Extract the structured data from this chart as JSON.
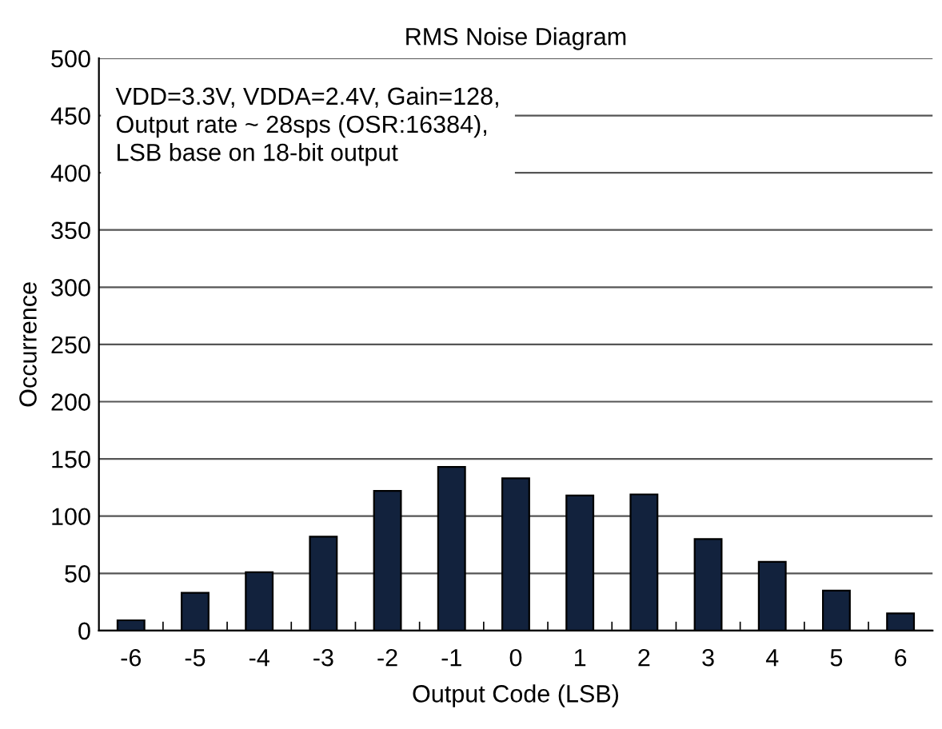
{
  "chart_data": {
    "type": "bar",
    "title": "RMS Noise Diagram",
    "xlabel": "Output Code (LSB)",
    "ylabel": "Occurrence",
    "categories": [
      "-6",
      "-5",
      "-4",
      "-3",
      "-2",
      "-1",
      "0",
      "1",
      "2",
      "3",
      "4",
      "5",
      "6"
    ],
    "values": [
      9,
      33,
      51,
      82,
      122,
      143,
      133,
      118,
      119,
      80,
      60,
      35,
      15
    ],
    "color": "#12223d",
    "ylim": [
      0,
      500
    ],
    "yticks": [
      0,
      50,
      100,
      150,
      200,
      250,
      300,
      350,
      400,
      450,
      500
    ],
    "grid": "y",
    "annotations": [
      "VDD=3.3V, VDDA=2.4V, Gain=128,\nOutput rate ~ 28sps (OSR:16384),\nLSB base on 18-bit output"
    ]
  }
}
